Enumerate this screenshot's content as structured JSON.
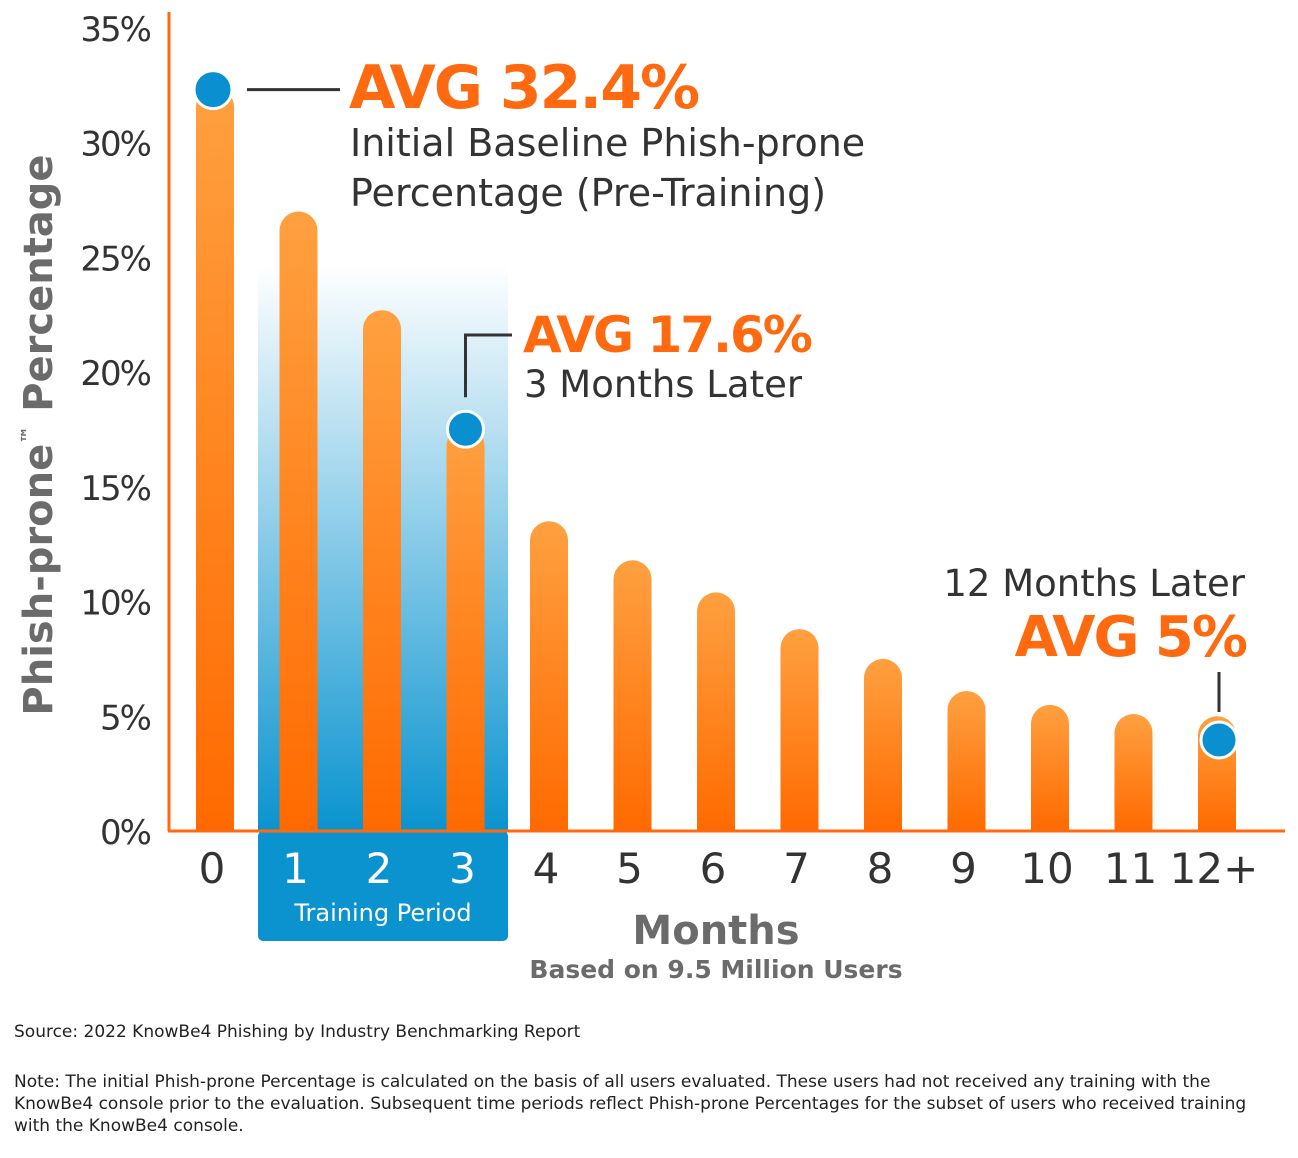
{
  "colors": {
    "bar_top": "#ffa040",
    "bar_bottom": "#ff6a00",
    "accent_orange": "#ff6a10",
    "marker_blue": "#0a8fd0",
    "training_band": "#0a93cf",
    "axis_text": "#333333",
    "title_gray": "#6b6b6b"
  },
  "chart_data": {
    "type": "bar",
    "ylabel": "Phish-prone™ Percentage",
    "ylabel_main": "Phish-prone",
    "ylabel_tm": "™",
    "ylabel_rest": "Percentage",
    "xlabel": "Months",
    "subtitle": "Based on 9.5 Million Users",
    "ylim": [
      0,
      35
    ],
    "yticks": [
      {
        "value": 0,
        "label": "0%"
      },
      {
        "value": 5,
        "label": "5%"
      },
      {
        "value": 10,
        "label": "10%"
      },
      {
        "value": 15,
        "label": "15%"
      },
      {
        "value": 20,
        "label": "20%"
      },
      {
        "value": 25,
        "label": "25%"
      },
      {
        "value": 30,
        "label": "30%"
      },
      {
        "value": 35,
        "label": "35%"
      }
    ],
    "categories": [
      "0",
      "1",
      "2",
      "3",
      "4",
      "5",
      "6",
      "7",
      "8",
      "9",
      "10",
      "11",
      "12+"
    ],
    "values": [
      32.4,
      27.0,
      22.7,
      17.6,
      13.5,
      11.8,
      10.4,
      8.8,
      7.5,
      6.1,
      5.5,
      5.1,
      5.0
    ],
    "training_period": {
      "label": "Training Period",
      "categories": [
        "1",
        "2",
        "3"
      ]
    },
    "grid": false,
    "annotations": [
      {
        "category": "0",
        "value": 32.4,
        "headline": "AVG 32.4%",
        "lines": [
          "Initial Baseline Phish-prone",
          "Percentage (Pre-Training)"
        ]
      },
      {
        "category": "3",
        "value": 17.6,
        "headline": "AVG 17.6%",
        "lines": [
          "3 Months Later"
        ]
      },
      {
        "category": "12+",
        "value": 5.0,
        "headline": "AVG 5%",
        "lines": [
          "12 Months Later"
        ]
      }
    ]
  },
  "footer": {
    "source": "Source: 2022 KnowBe4 Phishing by Industry Benchmarking Report",
    "note": "Note: The initial Phish-prone Percentage is calculated on the basis of all users evaluated. These users had not received any training with the KnowBe4 console prior to the evaluation. Subsequent time periods reflect Phish-prone Percentages for the subset of users who received training with the KnowBe4 console."
  }
}
